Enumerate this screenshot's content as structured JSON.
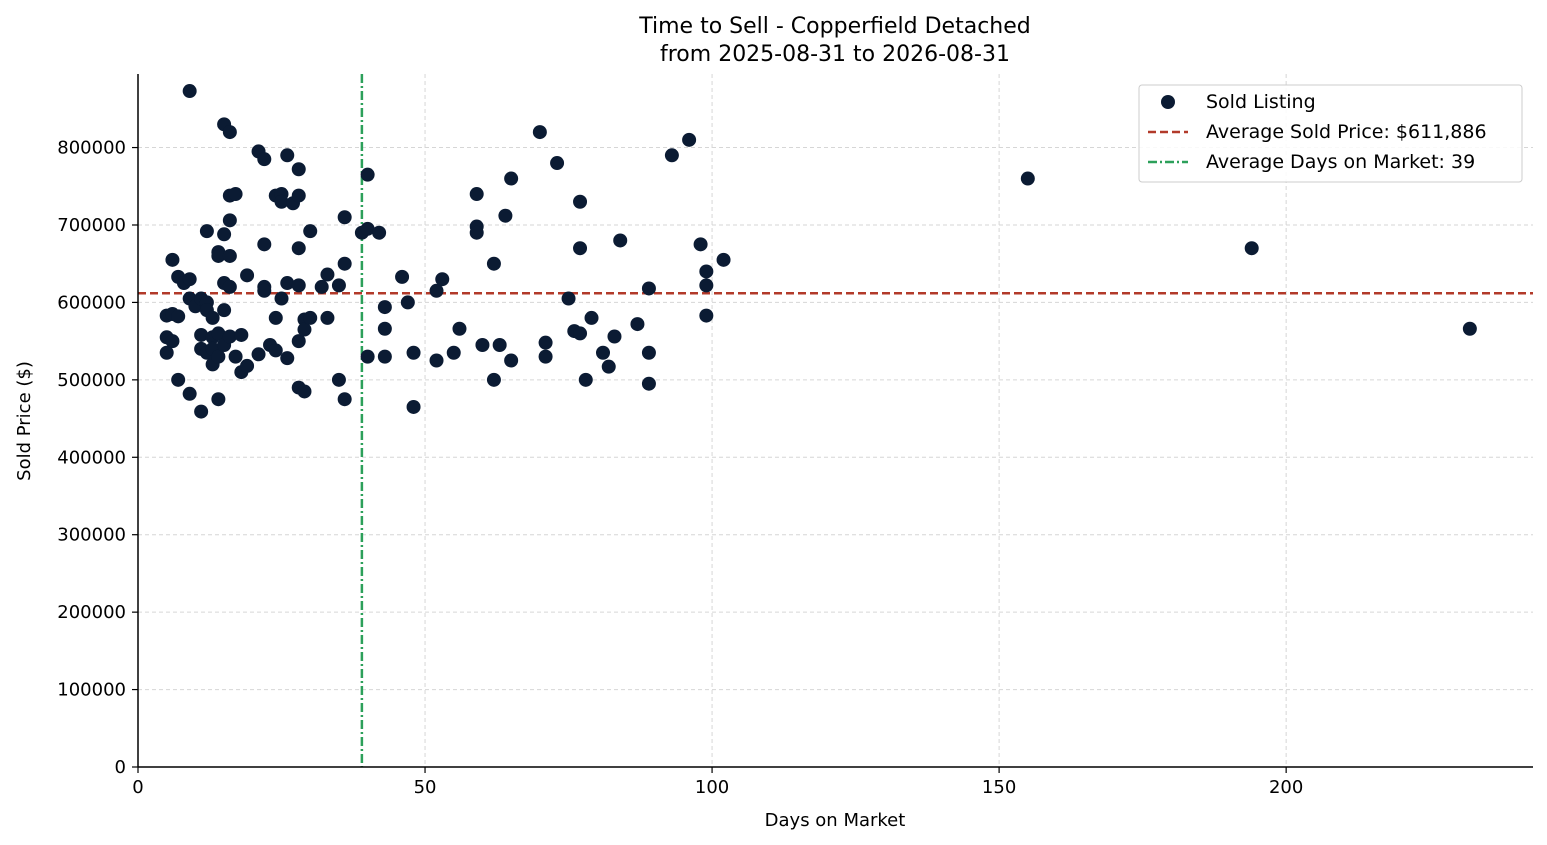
{
  "chart_data": {
    "type": "scatter",
    "title_line1": "Time to Sell - Copperfield Detached",
    "title_line2": "from 2025-08-31 to 2026-08-31",
    "xlabel": "Days on Market",
    "ylabel": "Sold Price ($)",
    "xlim": [
      0,
      243
    ],
    "ylim": [
      0,
      895000
    ],
    "xticks": [
      0,
      50,
      100,
      150,
      200
    ],
    "yticks": [
      0,
      100000,
      200000,
      300000,
      400000,
      500000,
      600000,
      700000,
      800000
    ],
    "grid": true,
    "legend_position": "top-right",
    "colors": {
      "points": "#0b1b33",
      "avg_price_line": "#b23a2a",
      "avg_days_line": "#2ca05a"
    },
    "legend": [
      {
        "label": "Sold Listing",
        "kind": "marker"
      },
      {
        "label": "Average Sold Price: $611,886",
        "kind": "dashed"
      },
      {
        "label": "Average Days on Market: 39",
        "kind": "dashdot"
      }
    ],
    "avg_price": 611886,
    "avg_days": 39,
    "series": [
      {
        "name": "Sold Listing",
        "points": [
          [
            5,
            583000
          ],
          [
            5,
            555000
          ],
          [
            5,
            535000
          ],
          [
            6,
            655000
          ],
          [
            6,
            585000
          ],
          [
            6,
            550000
          ],
          [
            7,
            633000
          ],
          [
            7,
            582000
          ],
          [
            7,
            500000
          ],
          [
            8,
            625000
          ],
          [
            9,
            873000
          ],
          [
            9,
            630000
          ],
          [
            9,
            605000
          ],
          [
            9,
            482000
          ],
          [
            10,
            595000
          ],
          [
            11,
            605000
          ],
          [
            11,
            558000
          ],
          [
            11,
            540000
          ],
          [
            11,
            459000
          ],
          [
            12,
            692000
          ],
          [
            12,
            600000
          ],
          [
            12,
            590000
          ],
          [
            12,
            535000
          ],
          [
            13,
            580000
          ],
          [
            13,
            555000
          ],
          [
            13,
            540000
          ],
          [
            13,
            520000
          ],
          [
            14,
            665000
          ],
          [
            14,
            660000
          ],
          [
            14,
            560000
          ],
          [
            14,
            530000
          ],
          [
            14,
            475000
          ],
          [
            15,
            830000
          ],
          [
            15,
            688000
          ],
          [
            15,
            625000
          ],
          [
            15,
            590000
          ],
          [
            15,
            545000
          ],
          [
            16,
            820000
          ],
          [
            16,
            738000
          ],
          [
            16,
            706000
          ],
          [
            16,
            660000
          ],
          [
            16,
            620000
          ],
          [
            16,
            556000
          ],
          [
            17,
            740000
          ],
          [
            17,
            530000
          ],
          [
            18,
            558000
          ],
          [
            18,
            510000
          ],
          [
            19,
            635000
          ],
          [
            19,
            518000
          ],
          [
            21,
            795000
          ],
          [
            21,
            533000
          ],
          [
            22,
            785000
          ],
          [
            22,
            675000
          ],
          [
            22,
            620000
          ],
          [
            22,
            615000
          ],
          [
            23,
            545000
          ],
          [
            24,
            738000
          ],
          [
            24,
            580000
          ],
          [
            24,
            538000
          ],
          [
            25,
            740000
          ],
          [
            25,
            730000
          ],
          [
            25,
            605000
          ],
          [
            26,
            790000
          ],
          [
            26,
            625000
          ],
          [
            26,
            528000
          ],
          [
            27,
            728000
          ],
          [
            28,
            772000
          ],
          [
            28,
            738000
          ],
          [
            28,
            670000
          ],
          [
            28,
            622000
          ],
          [
            28,
            550000
          ],
          [
            28,
            490000
          ],
          [
            29,
            578000
          ],
          [
            29,
            565000
          ],
          [
            29,
            485000
          ],
          [
            30,
            692000
          ],
          [
            30,
            580000
          ],
          [
            32,
            620000
          ],
          [
            33,
            636000
          ],
          [
            33,
            580000
          ],
          [
            35,
            622000
          ],
          [
            35,
            500000
          ],
          [
            36,
            710000
          ],
          [
            36,
            650000
          ],
          [
            36,
            475000
          ],
          [
            39,
            690000
          ],
          [
            40,
            765000
          ],
          [
            40,
            695000
          ],
          [
            40,
            530000
          ],
          [
            42,
            690000
          ],
          [
            43,
            594000
          ],
          [
            43,
            566000
          ],
          [
            43,
            530000
          ],
          [
            46,
            633000
          ],
          [
            47,
            600000
          ],
          [
            48,
            535000
          ],
          [
            48,
            465000
          ],
          [
            52,
            615000
          ],
          [
            52,
            525000
          ],
          [
            53,
            630000
          ],
          [
            55,
            535000
          ],
          [
            56,
            566000
          ],
          [
            59,
            740000
          ],
          [
            59,
            698000
          ],
          [
            59,
            690000
          ],
          [
            60,
            545000
          ],
          [
            62,
            650000
          ],
          [
            62,
            500000
          ],
          [
            63,
            545000
          ],
          [
            64,
            712000
          ],
          [
            65,
            760000
          ],
          [
            65,
            525000
          ],
          [
            70,
            820000
          ],
          [
            71,
            548000
          ],
          [
            71,
            530000
          ],
          [
            73,
            780000
          ],
          [
            75,
            605000
          ],
          [
            76,
            563000
          ],
          [
            77,
            730000
          ],
          [
            77,
            670000
          ],
          [
            77,
            560000
          ],
          [
            78,
            500000
          ],
          [
            79,
            580000
          ],
          [
            81,
            535000
          ],
          [
            82,
            517000
          ],
          [
            83,
            556000
          ],
          [
            84,
            680000
          ],
          [
            87,
            572000
          ],
          [
            89,
            618000
          ],
          [
            89,
            535000
          ],
          [
            89,
            495000
          ],
          [
            93,
            790000
          ],
          [
            96,
            810000
          ],
          [
            98,
            675000
          ],
          [
            99,
            640000
          ],
          [
            99,
            622000
          ],
          [
            99,
            583000
          ],
          [
            102,
            655000
          ],
          [
            155,
            760000
          ],
          [
            194,
            670000
          ],
          [
            232,
            566000
          ]
        ]
      }
    ]
  }
}
